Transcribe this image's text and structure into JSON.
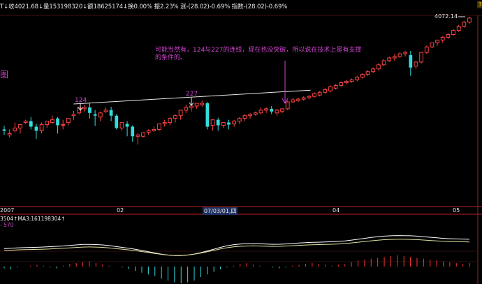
{
  "header": {
    "line": [
      {
        "text": "T↓收4021.68↓量153198320↓额18625174↓换0.00% 振2.23% 涨-(28.02)-0.69% 指数-(28.02)-0.69%",
        "color": "#e8e8e8"
      }
    ]
  },
  "annotation": {
    "line1": "可能当然有，124与227的连线，现在也没突破，所以说在技术上是有支撑",
    "line2": "的条件的。",
    "color": "#cc44cc"
  },
  "left_label": "图",
  "right_edge_label": "3",
  "markers": {
    "m124": "124",
    "m227": "227",
    "peak": "4072.14"
  },
  "date_axis": {
    "labels": [
      "2007",
      "02",
      "07/03/01,四",
      "04",
      "05"
    ]
  },
  "indicator": {
    "label": "3504↑MA3:161198304↑",
    "sub_label": "- 570"
  },
  "colors": {
    "up": "#ff4444",
    "down": "#33dddd",
    "trendline": "#e8e8e8",
    "ma": "#ffffff",
    "ma2": "#e0e0a0",
    "grid": "#a01010",
    "axis_sep": "#c02020"
  },
  "chart_data": {
    "type": "candlestick",
    "candles": [
      [
        50,
        55,
        48,
        42
      ],
      [
        42,
        50,
        44,
        38
      ],
      [
        48,
        60,
        52,
        45
      ],
      [
        52,
        55,
        57,
        44
      ],
      [
        60,
        64,
        62,
        58
      ],
      [
        62,
        68,
        54,
        50
      ],
      [
        54,
        58,
        48,
        36
      ],
      [
        48,
        60,
        57,
        44
      ],
      [
        57,
        60,
        62,
        52
      ],
      [
        60,
        70,
        64,
        58
      ],
      [
        66,
        68,
        56,
        44
      ],
      [
        56,
        64,
        57,
        50
      ],
      [
        60,
        64,
        66,
        56
      ],
      [
        70,
        77,
        72,
        64
      ],
      [
        74,
        78,
        82,
        72
      ],
      [
        80,
        86,
        82,
        76
      ],
      [
        82,
        88,
        74,
        66
      ],
      [
        72,
        78,
        70,
        55
      ],
      [
        68,
        76,
        74,
        62
      ],
      [
        76,
        82,
        78,
        74
      ],
      [
        78,
        83,
        70,
        62
      ],
      [
        70,
        72,
        52,
        50
      ],
      [
        52,
        56,
        60,
        48
      ],
      [
        58,
        62,
        54,
        40
      ],
      [
        54,
        56,
        40,
        32
      ],
      [
        40,
        44,
        42,
        28
      ],
      [
        40,
        46,
        45,
        38
      ],
      [
        46,
        50,
        48,
        42
      ],
      [
        48,
        54,
        50,
        46
      ],
      [
        50,
        56,
        58,
        48
      ],
      [
        58,
        64,
        60,
        54
      ],
      [
        60,
        68,
        66,
        56
      ],
      [
        66,
        72,
        70,
        60
      ],
      [
        70,
        76,
        78,
        64
      ],
      [
        78,
        86,
        82,
        74
      ],
      [
        82,
        86,
        84,
        76
      ],
      [
        84,
        86,
        88,
        80
      ],
      [
        86,
        92,
        88,
        83
      ],
      [
        88,
        90,
        54,
        50
      ],
      [
        56,
        62,
        64,
        48
      ],
      [
        64,
        67,
        56,
        48
      ],
      [
        56,
        60,
        60,
        52
      ],
      [
        60,
        64,
        57,
        50
      ],
      [
        58,
        64,
        62,
        54
      ],
      [
        62,
        68,
        66,
        58
      ],
      [
        66,
        72,
        70,
        62
      ],
      [
        70,
        74,
        72,
        66
      ],
      [
        72,
        76,
        74,
        70
      ],
      [
        74,
        82,
        78,
        72
      ],
      [
        78,
        82,
        80,
        74
      ],
      [
        80,
        84,
        76,
        72
      ],
      [
        74,
        80,
        78,
        70
      ],
      [
        76,
        80,
        80,
        74
      ],
      [
        80,
        92,
        90,
        78
      ],
      [
        90,
        96,
        93,
        88
      ],
      [
        92,
        96,
        94,
        90
      ],
      [
        94,
        98,
        96,
        92
      ],
      [
        96,
        100,
        98,
        94
      ],
      [
        98,
        104,
        102,
        96
      ],
      [
        100,
        106,
        104,
        98
      ],
      [
        104,
        110,
        108,
        102
      ],
      [
        106,
        114,
        112,
        104
      ],
      [
        110,
        116,
        114,
        108
      ],
      [
        114,
        120,
        118,
        112
      ],
      [
        118,
        122,
        120,
        116
      ],
      [
        120,
        124,
        122,
        118
      ],
      [
        122,
        128,
        126,
        120
      ],
      [
        126,
        132,
        130,
        124
      ],
      [
        130,
        136,
        134,
        128
      ],
      [
        134,
        140,
        138,
        132
      ],
      [
        138,
        146,
        144,
        136
      ],
      [
        144,
        152,
        150,
        142
      ],
      [
        150,
        156,
        154,
        148
      ],
      [
        154,
        160,
        156,
        150
      ],
      [
        156,
        162,
        160,
        154
      ],
      [
        160,
        164,
        162,
        156
      ],
      [
        158,
        164,
        140,
        128
      ],
      [
        142,
        150,
        148,
        138
      ],
      [
        148,
        158,
        162,
        146
      ],
      [
        162,
        172,
        170,
        160
      ],
      [
        170,
        176,
        176,
        168
      ],
      [
        176,
        180,
        180,
        172
      ],
      [
        180,
        186,
        184,
        176
      ],
      [
        184,
        190,
        188,
        182
      ],
      [
        188,
        196,
        194,
        186
      ],
      [
        194,
        202,
        200,
        192
      ],
      [
        200,
        208,
        206,
        198
      ],
      [
        206,
        214,
        212,
        204
      ]
    ],
    "trendline": {
      "from_index": 13,
      "from_value": 87,
      "to_index": 56,
      "to_value": 101
    },
    "macd": [
      -2,
      -3,
      -1,
      0,
      1,
      2,
      1,
      -1,
      -2,
      1,
      3,
      4,
      5,
      6,
      4,
      2,
      1,
      0,
      -1,
      -3,
      -5,
      -7,
      -9,
      -11,
      -14,
      -16,
      -18,
      -19,
      -18,
      -16,
      -12,
      -9,
      -6,
      -3,
      -1,
      1,
      3,
      4,
      2,
      1,
      0,
      -1,
      -2,
      -1,
      1,
      2,
      3,
      4,
      3,
      2,
      1,
      2,
      3,
      5,
      7,
      8,
      9,
      10,
      11,
      12,
      13,
      12,
      11,
      10,
      9,
      8,
      7,
      6,
      5,
      4,
      3,
      4
    ]
  }
}
